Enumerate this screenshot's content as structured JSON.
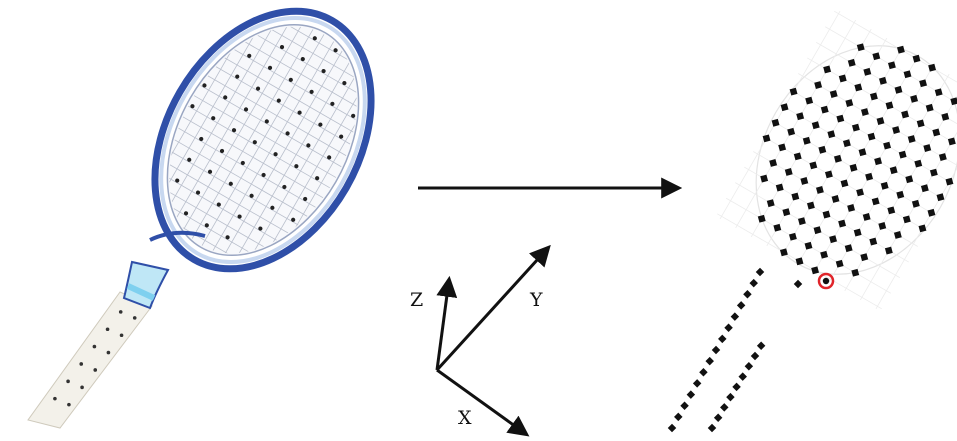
{
  "axes": {
    "x_label": "X",
    "y_label": "Y",
    "z_label": "Z"
  },
  "colors": {
    "frame_blue": "#2f4fa8",
    "frame_light": "#c8d8f0",
    "grip_white": "#f3f1ea",
    "throat_cyan": "#7fd0ef",
    "marker_black": "#111111",
    "highlight_red": "#e0242a"
  },
  "icons": {
    "racket_photo": "tennis-racket-photo",
    "point_model": "marker-point-model",
    "transform_arrow": "right-arrow",
    "coordinate_frame": "xyz-axes"
  }
}
